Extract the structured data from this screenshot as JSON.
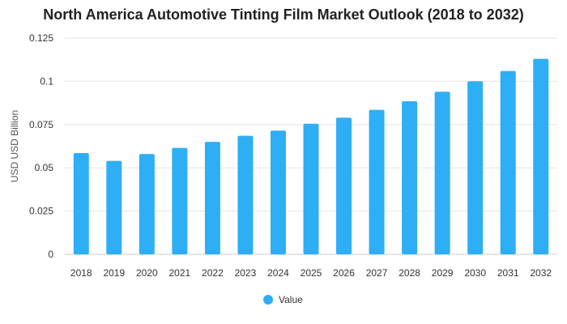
{
  "chart_data": {
    "type": "bar",
    "title": "North America Automotive Tinting Film Market Outlook (2018 to 2032)",
    "xlabel": "",
    "ylabel": "USD USD Billion",
    "categories": [
      "2018",
      "2019",
      "2020",
      "2021",
      "2022",
      "2023",
      "2024",
      "2025",
      "2026",
      "2027",
      "2028",
      "2029",
      "2030",
      "2031",
      "2032"
    ],
    "series": [
      {
        "name": "Value",
        "color": "#2eaef5",
        "values": [
          0.0585,
          0.054,
          0.058,
          0.0615,
          0.065,
          0.0685,
          0.0715,
          0.0755,
          0.079,
          0.0835,
          0.0885,
          0.094,
          0.1,
          0.106,
          0.113
        ]
      }
    ],
    "ylim": [
      0,
      0.125
    ],
    "yticks": [
      "0",
      "0.025",
      "0.05",
      "0.075",
      "0.1",
      "0.125"
    ],
    "ytick_values": [
      0,
      0.025,
      0.05,
      0.075,
      0.1,
      0.125
    ],
    "grid": true,
    "legend_position": "bottom",
    "gridline_color": "#e6e6e6",
    "axis_color": "#cccccc"
  }
}
